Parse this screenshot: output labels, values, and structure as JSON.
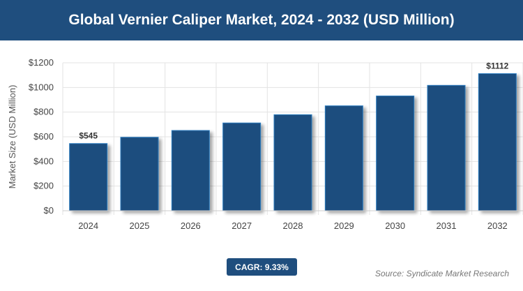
{
  "title": "Global Vernier Caliper Market, 2024 - 2032 (USD Million)",
  "cagr": "CAGR: 9.33%",
  "source": "Source: Syndicate Market Research",
  "chart_data": {
    "type": "bar",
    "title": "Global Vernier Caliper Market, 2024 - 2032 (USD Million)",
    "xlabel": "",
    "ylabel": "Market Size (USD Million)",
    "categories": [
      "2024",
      "2025",
      "2026",
      "2027",
      "2028",
      "2029",
      "2030",
      "2031",
      "2032"
    ],
    "values": [
      545,
      596,
      651,
      712,
      779,
      851,
      931,
      1017,
      1112
    ],
    "data_labels": {
      "0": "$545",
      "8": "$1112"
    },
    "ylim": [
      0,
      1200
    ],
    "yticks": [
      "$0",
      "$200",
      "$400",
      "$600",
      "$800",
      "$1000",
      "$1200"
    ],
    "grid": true,
    "bar_color": "#1f4e7e"
  }
}
